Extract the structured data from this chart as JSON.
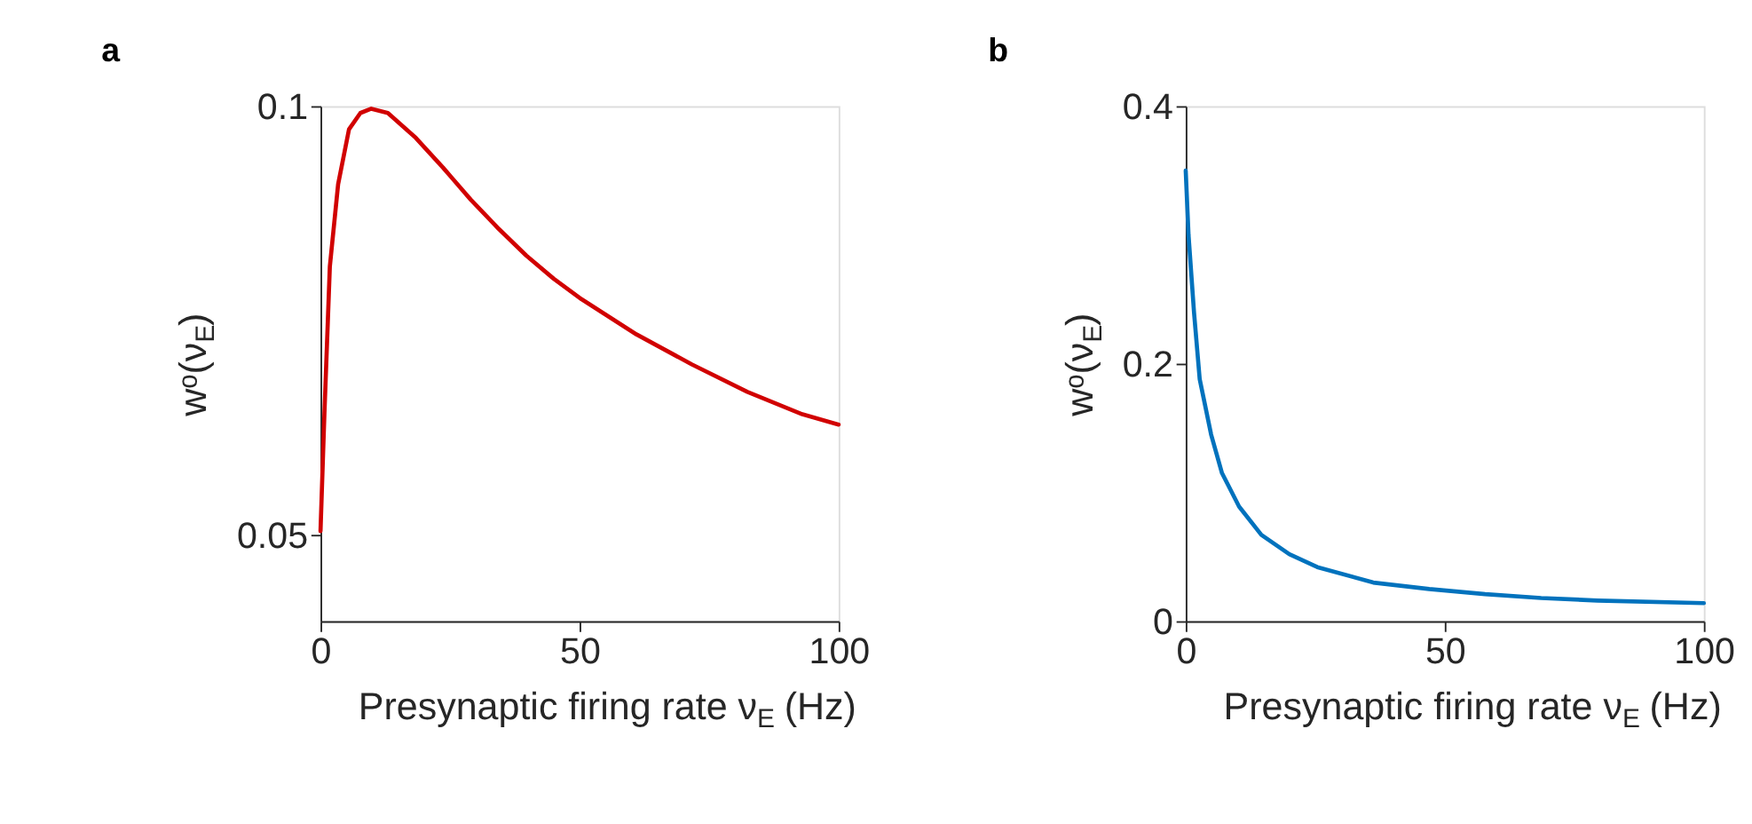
{
  "chart_data": [
    {
      "type": "line",
      "title": "a",
      "xlabel": "Presynaptic firing rate ν$_{E}$ (Hz)",
      "ylabel": "wᵒ(ν$_{E}$)",
      "xlim": [
        0,
        100
      ],
      "ylim": [
        0.04,
        0.1
      ],
      "xticks": [
        0,
        50,
        100
      ],
      "yticks": [
        0.05,
        0.1
      ],
      "grid": false,
      "legend": false,
      "x": [
        0,
        0.75,
        1.8,
        3.4,
        5.5,
        7.7,
        9.8,
        13,
        18.4,
        23.7,
        29,
        34.4,
        39.7,
        45,
        50.4,
        61,
        71.7,
        82.4,
        93,
        100
      ],
      "series": [
        {
          "color": "#d10000",
          "values": [
            0.0505,
            0.0641,
            0.0813,
            0.0909,
            0.0973,
            0.0992,
            0.0997,
            0.0992,
            0.0963,
            0.0928,
            0.0891,
            0.0857,
            0.0826,
            0.0799,
            0.0775,
            0.0734,
            0.0699,
            0.0667,
            0.0641,
            0.0629
          ]
        }
      ]
    },
    {
      "type": "line",
      "title": "b",
      "xlabel": "Presynaptic firing rate ν$_{E}$ (Hz)",
      "ylabel": "wᵒ(ν$_{E}$)",
      "xlim": [
        0,
        100
      ],
      "ylim": [
        0,
        0.4
      ],
      "xticks": [
        0,
        50,
        100
      ],
      "yticks": [
        0,
        0.2,
        0.4
      ],
      "grid": false,
      "legend": false,
      "x": [
        0,
        0.54,
        1.6,
        2.7,
        4.9,
        7,
        10.3,
        14.6,
        20,
        25.4,
        36.2,
        47,
        57.8,
        68.6,
        79.5,
        100
      ],
      "series": [
        {
          "color": "#0072bd",
          "values": [
            0.35,
            0.3,
            0.24,
            0.188,
            0.145,
            0.115,
            0.089,
            0.067,
            0.052,
            0.042,
            0.03,
            0.025,
            0.021,
            0.018,
            0.016,
            0.014
          ]
        }
      ]
    }
  ]
}
